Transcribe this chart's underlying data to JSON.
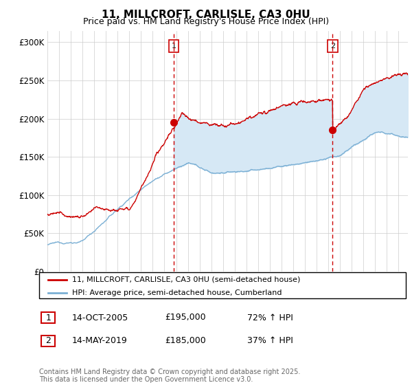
{
  "title1": "11, MILLCROFT, CARLISLE, CA3 0HU",
  "title2": "Price paid vs. HM Land Registry's House Price Index (HPI)",
  "ylabel_ticks": [
    "£0",
    "£50K",
    "£100K",
    "£150K",
    "£200K",
    "£250K",
    "£300K"
  ],
  "ytick_values": [
    0,
    50000,
    100000,
    150000,
    200000,
    250000,
    300000
  ],
  "ylim": [
    0,
    315000
  ],
  "xlim_start": 1995.0,
  "xlim_end": 2025.8,
  "color_house": "#cc0000",
  "color_hpi": "#7aafd4",
  "color_hpi_fill": "#d6e8f5",
  "color_vline": "#cc0000",
  "legend_label1": "11, MILLCROFT, CARLISLE, CA3 0HU (semi-detached house)",
  "legend_label2": "HPI: Average price, semi-detached house, Cumberland",
  "marker1_date": 2005.79,
  "marker1_price": 195000,
  "marker1_label": "1",
  "marker2_date": 2019.37,
  "marker2_price": 185000,
  "marker2_label": "2",
  "table_rows": [
    [
      "1",
      "14-OCT-2005",
      "£195,000",
      "72% ↑ HPI"
    ],
    [
      "2",
      "14-MAY-2019",
      "£185,000",
      "37% ↑ HPI"
    ]
  ],
  "footnote": "Contains HM Land Registry data © Crown copyright and database right 2025.\nThis data is licensed under the Open Government Licence v3.0.",
  "background_color": "#ffffff",
  "grid_color": "#cccccc"
}
